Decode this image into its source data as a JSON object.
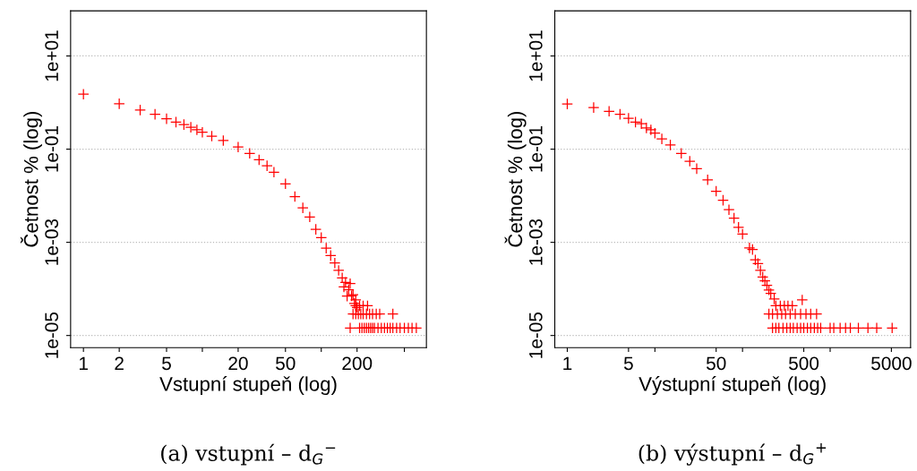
{
  "chart_data": [
    {
      "type": "scatter",
      "xlabel": "Vstupní stupeň (log)",
      "ylabel": "Četnost % (log)",
      "log": "xy",
      "grid": "y",
      "marker": "cross",
      "annotations": [
        "(a) vstupní – d$_{G}$$^{−}$"
      ],
      "xlim": [
        0.78,
        766
      ],
      "ylim": [
        5.5e-06,
        93
      ],
      "xticks": [
        1,
        2,
        5,
        {
          "value": 10,
          "label": null
        },
        20,
        50,
        {
          "value": 100,
          "label": null
        },
        200,
        {
          "value": 500,
          "label": null
        }
      ],
      "yticks": [
        {
          "value": 1e-05,
          "label": "1e-05"
        },
        {
          "value": 0.001,
          "label": "1e-03"
        },
        {
          "value": 0.1,
          "label": "1e-01"
        },
        {
          "value": 10,
          "label": "1e+01"
        }
      ],
      "series": [
        {
          "color": "#ff0000",
          "x": [
            1,
            2,
            3,
            4,
            5,
            6,
            7,
            8,
            9,
            10,
            12,
            15,
            20,
            25,
            30,
            35,
            40,
            50,
            60,
            70,
            80,
            90,
            100,
            110,
            120,
            130,
            140,
            150,
            160,
            170,
            180,
            190,
            200,
            155,
            165,
            175,
            185,
            195,
            175,
            210,
            220,
            230,
            240,
            250,
            260,
            270,
            280,
            300,
            320,
            340,
            360,
            380,
            400,
            430,
            460,
            500,
            540,
            580,
            630,
            185,
            195,
            205,
            215,
            225,
            240,
            255,
            270,
            290,
            310,
            400,
            195,
            210,
            225,
            245
          ],
          "values": [
            1.51,
            0.94,
            0.69,
            0.56,
            0.45,
            0.38,
            0.336,
            0.294,
            0.26,
            0.23,
            0.19,
            0.153,
            0.111,
            0.081,
            0.059,
            0.044,
            0.032,
            0.018,
            0.0096,
            0.0055,
            0.0035,
            0.0019,
            0.00126,
            0.00075,
            0.00052,
            0.00036,
            0.00025,
            0.000173,
            0.000138,
            9.6e-05,
            7.1e-05,
            4.9e-05,
            4e-05,
            0.00011,
            7e-05,
            0.00013,
            7.5e-05,
            5.8e-05,
            1.45e-05,
            1.45e-05,
            1.45e-05,
            1.45e-05,
            1.45e-05,
            1.45e-05,
            1.45e-05,
            1.45e-05,
            1.45e-05,
            1.45e-05,
            1.45e-05,
            1.45e-05,
            1.45e-05,
            1.45e-05,
            1.45e-05,
            1.45e-05,
            1.45e-05,
            1.45e-05,
            1.45e-05,
            1.45e-05,
            1.45e-05,
            2.9e-05,
            2.9e-05,
            2.9e-05,
            2.9e-05,
            2.9e-05,
            2.9e-05,
            2.9e-05,
            2.9e-05,
            2.9e-05,
            2.9e-05,
            2.9e-05,
            4.35e-05,
            4.35e-05,
            4.35e-05,
            4.35e-05
          ]
        }
      ]
    },
    {
      "type": "scatter",
      "xlabel": "Výstupní stupeň (log)",
      "ylabel": "Četnost % (log)",
      "log": "xy",
      "grid": "y",
      "marker": "cross",
      "annotations": [
        "(b) výstupní – d$_{G}$$^{+}$"
      ],
      "xlim": [
        0.72,
        8280
      ],
      "ylim": [
        5.5e-06,
        93
      ],
      "xticks": [
        1,
        5,
        {
          "value": 10,
          "label": null
        },
        50,
        {
          "value": 100,
          "label": null
        },
        500,
        {
          "value": 1000,
          "label": null
        },
        5000
      ],
      "yticks": [
        {
          "value": 1e-05,
          "label": "1e-05"
        },
        {
          "value": 0.001,
          "label": "1e-03"
        },
        {
          "value": 0.1,
          "label": "1e-01"
        },
        {
          "value": 10,
          "label": "1e+01"
        }
      ],
      "series": [
        {
          "color": "#ff0000",
          "x": [
            1,
            2,
            3,
            4,
            5,
            6,
            7,
            8,
            9,
            10,
            12,
            15,
            20,
            25,
            30,
            40,
            50,
            60,
            70,
            80,
            90,
            100,
            120,
            140,
            160,
            180,
            200,
            230,
            130,
            150,
            170,
            190,
            210,
            200,
            220,
            250,
            280,
            310,
            350,
            400,
            460,
            530,
            600,
            700,
            240,
            270,
            300,
            330,
            370,
            480,
            220,
            240,
            260,
            290,
            320,
            350,
            380,
            420,
            460,
            500,
            550,
            600,
            660,
            720,
            780,
            1000,
            1100,
            1300,
            1500,
            1700,
            2100,
            2700,
            3400,
            5100
          ],
          "values": [
            0.93,
            0.78,
            0.65,
            0.56,
            0.46,
            0.38,
            0.35,
            0.285,
            0.26,
            0.22,
            0.166,
            0.123,
            0.081,
            0.055,
            0.038,
            0.022,
            0.0125,
            0.008,
            0.005,
            0.0033,
            0.0021,
            0.0015,
            0.00076,
            0.00042,
            0.00025,
            0.000149,
            9.5e-05,
            6.1e-05,
            0.0007,
            0.00035,
            0.00018,
            0.00012,
            8e-05,
            2.9e-05,
            2.9e-05,
            2.9e-05,
            2.9e-05,
            2.9e-05,
            2.9e-05,
            2.9e-05,
            2.9e-05,
            2.9e-05,
            2.9e-05,
            2.9e-05,
            4.35e-05,
            4.35e-05,
            4.35e-05,
            4.35e-05,
            4.35e-05,
            5.8e-05,
            1.45e-05,
            1.45e-05,
            1.45e-05,
            1.45e-05,
            1.45e-05,
            1.45e-05,
            1.45e-05,
            1.45e-05,
            1.45e-05,
            1.45e-05,
            1.45e-05,
            1.45e-05,
            1.45e-05,
            1.45e-05,
            1.45e-05,
            1.45e-05,
            1.45e-05,
            1.45e-05,
            1.45e-05,
            1.45e-05,
            1.45e-05,
            1.45e-05,
            1.45e-05,
            1.45e-05
          ]
        }
      ]
    }
  ]
}
